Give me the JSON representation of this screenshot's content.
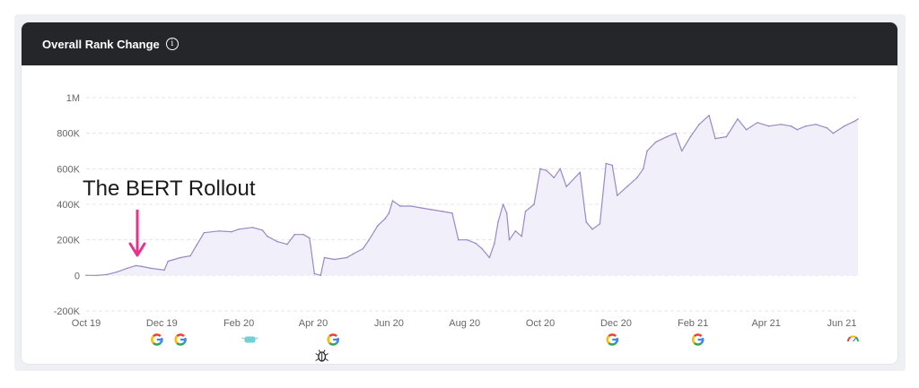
{
  "card": {
    "title": "Overall Rank Change",
    "info_icon": "info-icon"
  },
  "annotation": {
    "text": "The BERT Rollout",
    "arrow_color": "#e8338b"
  },
  "colors": {
    "line": "#9b88c4",
    "fill": "#f1effa",
    "grid": "#e4e4e7",
    "axis_text": "#666666",
    "header_bg": "#24262a"
  },
  "chart_data": {
    "type": "area",
    "title": "",
    "xlabel": "",
    "ylabel": "",
    "ylim": [
      -200000,
      1000000
    ],
    "y_ticks": [
      {
        "value": 1000000,
        "label": "1M"
      },
      {
        "value": 800000,
        "label": "800K"
      },
      {
        "value": 600000,
        "label": "600K"
      },
      {
        "value": 400000,
        "label": "400K"
      },
      {
        "value": 200000,
        "label": "200K"
      },
      {
        "value": 0,
        "label": "0"
      },
      {
        "value": -200000,
        "label": "-200K"
      }
    ],
    "x_range": [
      "2019-10-01",
      "2021-06-14"
    ],
    "x_ticks": [
      {
        "date": "2019-10-01",
        "label": "Oct 19"
      },
      {
        "date": "2019-12-01",
        "label": "Dec 19"
      },
      {
        "date": "2020-02-01",
        "label": "Feb 20"
      },
      {
        "date": "2020-04-01",
        "label": "Apr 20"
      },
      {
        "date": "2020-06-01",
        "label": "Jun 20"
      },
      {
        "date": "2020-08-01",
        "label": "Aug 20"
      },
      {
        "date": "2020-10-01",
        "label": "Oct 20"
      },
      {
        "date": "2020-12-01",
        "label": "Dec 20"
      },
      {
        "date": "2021-02-01",
        "label": "Feb 21"
      },
      {
        "date": "2021-04-01",
        "label": "Apr 21"
      },
      {
        "date": "2021-06-01",
        "label": "Jun 21"
      }
    ],
    "series": [
      {
        "points": [
          [
            "2019-10-01",
            0
          ],
          [
            "2019-10-10",
            0
          ],
          [
            "2019-10-18",
            5000
          ],
          [
            "2019-10-26",
            20000
          ],
          [
            "2019-11-03",
            40000
          ],
          [
            "2019-11-10",
            55000
          ],
          [
            "2019-11-15",
            50000
          ],
          [
            "2019-11-22",
            40000
          ],
          [
            "2019-12-03",
            30000
          ],
          [
            "2019-12-06",
            80000
          ],
          [
            "2019-12-16",
            100000
          ],
          [
            "2019-12-24",
            110000
          ],
          [
            "2019-12-29",
            170000
          ],
          [
            "2020-01-04",
            240000
          ],
          [
            "2020-01-16",
            250000
          ],
          [
            "2020-01-26",
            245000
          ],
          [
            "2020-02-01",
            260000
          ],
          [
            "2020-02-12",
            270000
          ],
          [
            "2020-02-20",
            255000
          ],
          [
            "2020-02-24",
            220000
          ],
          [
            "2020-03-03",
            190000
          ],
          [
            "2020-03-11",
            175000
          ],
          [
            "2020-03-17",
            230000
          ],
          [
            "2020-03-24",
            230000
          ],
          [
            "2020-03-29",
            210000
          ],
          [
            "2020-04-02",
            10000
          ],
          [
            "2020-04-07",
            0
          ],
          [
            "2020-04-10",
            100000
          ],
          [
            "2020-04-18",
            90000
          ],
          [
            "2020-04-28",
            100000
          ],
          [
            "2020-05-03",
            120000
          ],
          [
            "2020-05-11",
            150000
          ],
          [
            "2020-05-16",
            200000
          ],
          [
            "2020-05-23",
            280000
          ],
          [
            "2020-05-29",
            320000
          ],
          [
            "2020-06-01",
            350000
          ],
          [
            "2020-06-04",
            420000
          ],
          [
            "2020-06-10",
            390000
          ],
          [
            "2020-06-19",
            390000
          ],
          [
            "2020-06-27",
            380000
          ],
          [
            "2020-07-05",
            370000
          ],
          [
            "2020-07-14",
            360000
          ],
          [
            "2020-07-22",
            350000
          ],
          [
            "2020-07-27",
            200000
          ],
          [
            "2020-08-03",
            200000
          ],
          [
            "2020-08-10",
            180000
          ],
          [
            "2020-08-15",
            150000
          ],
          [
            "2020-08-21",
            100000
          ],
          [
            "2020-08-25",
            180000
          ],
          [
            "2020-08-28",
            300000
          ],
          [
            "2020-09-01",
            400000
          ],
          [
            "2020-09-04",
            350000
          ],
          [
            "2020-09-06",
            200000
          ],
          [
            "2020-09-11",
            250000
          ],
          [
            "2020-09-16",
            220000
          ],
          [
            "2020-09-19",
            360000
          ],
          [
            "2020-09-26",
            400000
          ],
          [
            "2020-10-01",
            600000
          ],
          [
            "2020-10-06",
            590000
          ],
          [
            "2020-10-12",
            550000
          ],
          [
            "2020-10-17",
            600000
          ],
          [
            "2020-10-22",
            500000
          ],
          [
            "2020-11-02",
            580000
          ],
          [
            "2020-11-07",
            300000
          ],
          [
            "2020-11-12",
            260000
          ],
          [
            "2020-11-18",
            290000
          ],
          [
            "2020-11-23",
            630000
          ],
          [
            "2020-11-28",
            620000
          ],
          [
            "2020-12-02",
            450000
          ],
          [
            "2020-12-10",
            500000
          ],
          [
            "2020-12-18",
            550000
          ],
          [
            "2020-12-23",
            600000
          ],
          [
            "2020-12-26",
            700000
          ],
          [
            "2021-01-02",
            750000
          ],
          [
            "2021-01-11",
            780000
          ],
          [
            "2021-01-18",
            800000
          ],
          [
            "2021-01-23",
            700000
          ],
          [
            "2021-01-30",
            780000
          ],
          [
            "2021-02-06",
            850000
          ],
          [
            "2021-02-14",
            900000
          ],
          [
            "2021-02-19",
            770000
          ],
          [
            "2021-02-28",
            780000
          ],
          [
            "2021-03-09",
            880000
          ],
          [
            "2021-03-16",
            820000
          ],
          [
            "2021-03-25",
            860000
          ],
          [
            "2021-04-03",
            840000
          ],
          [
            "2021-04-13",
            850000
          ],
          [
            "2021-04-21",
            840000
          ],
          [
            "2021-04-26",
            820000
          ],
          [
            "2021-05-03",
            840000
          ],
          [
            "2021-05-11",
            850000
          ],
          [
            "2021-05-20",
            830000
          ],
          [
            "2021-05-25",
            800000
          ],
          [
            "2021-06-03",
            840000
          ],
          [
            "2021-06-12",
            870000
          ],
          [
            "2021-06-14",
            880000
          ]
        ]
      }
    ],
    "markers": [
      {
        "date": "2019-11-27",
        "icon": "google-icon"
      },
      {
        "date": "2019-12-16",
        "icon": "google-icon"
      },
      {
        "date": "2020-02-10",
        "icon": "mask-icon"
      },
      {
        "date": "2020-04-08",
        "icon": "bug-icon"
      },
      {
        "date": "2020-04-17",
        "icon": "google-icon"
      },
      {
        "date": "2020-11-28",
        "icon": "google-icon"
      },
      {
        "date": "2021-02-05",
        "icon": "google-icon"
      },
      {
        "date": "2021-06-10",
        "icon": "gauge-icon"
      }
    ]
  }
}
